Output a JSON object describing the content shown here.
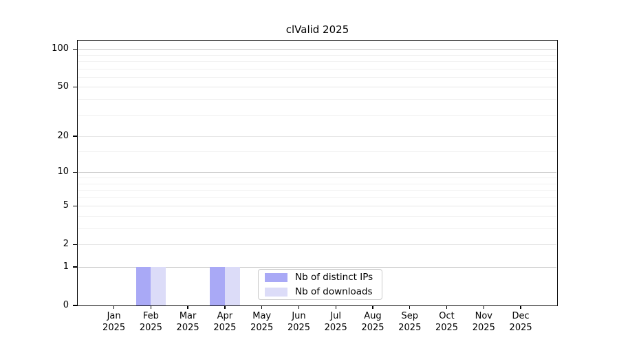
{
  "chart_data": {
    "type": "bar",
    "title": "clValid 2025",
    "categories": [
      "Jan 2025",
      "Feb 2025",
      "Mar 2025",
      "Apr 2025",
      "May 2025",
      "Jun 2025",
      "Jul 2025",
      "Aug 2025",
      "Sep 2025",
      "Oct 2025",
      "Nov 2025",
      "Dec 2025"
    ],
    "series": [
      {
        "name": "Nb of distinct IPs",
        "color": "#a9a9f6",
        "values": [
          0,
          1,
          0,
          1,
          0,
          0,
          0,
          0,
          0,
          0,
          0,
          0
        ]
      },
      {
        "name": "Nb of downloads",
        "color": "#dcdcf8",
        "values": [
          0,
          1,
          0,
          1,
          0,
          0,
          0,
          0,
          0,
          0,
          0,
          0
        ]
      }
    ],
    "y_scale": "log10(1+x)",
    "y_ticks": [
      0,
      1,
      2,
      5,
      10,
      20,
      50,
      100
    ],
    "y_minor_ticks": [
      3,
      4,
      6,
      7,
      8,
      9,
      15,
      30,
      40,
      60,
      70,
      80,
      90
    ],
    "ylim": [
      0,
      115
    ],
    "grid": true,
    "legend_position": "bottom-center",
    "colors": {
      "grid_pow10": "#c6c6c6",
      "grid_major": "#e6e6e6",
      "grid_minor": "#f1f1f1",
      "axis": "#000000",
      "legend_border": "#cbcbcb",
      "background": "#ffffff"
    }
  }
}
